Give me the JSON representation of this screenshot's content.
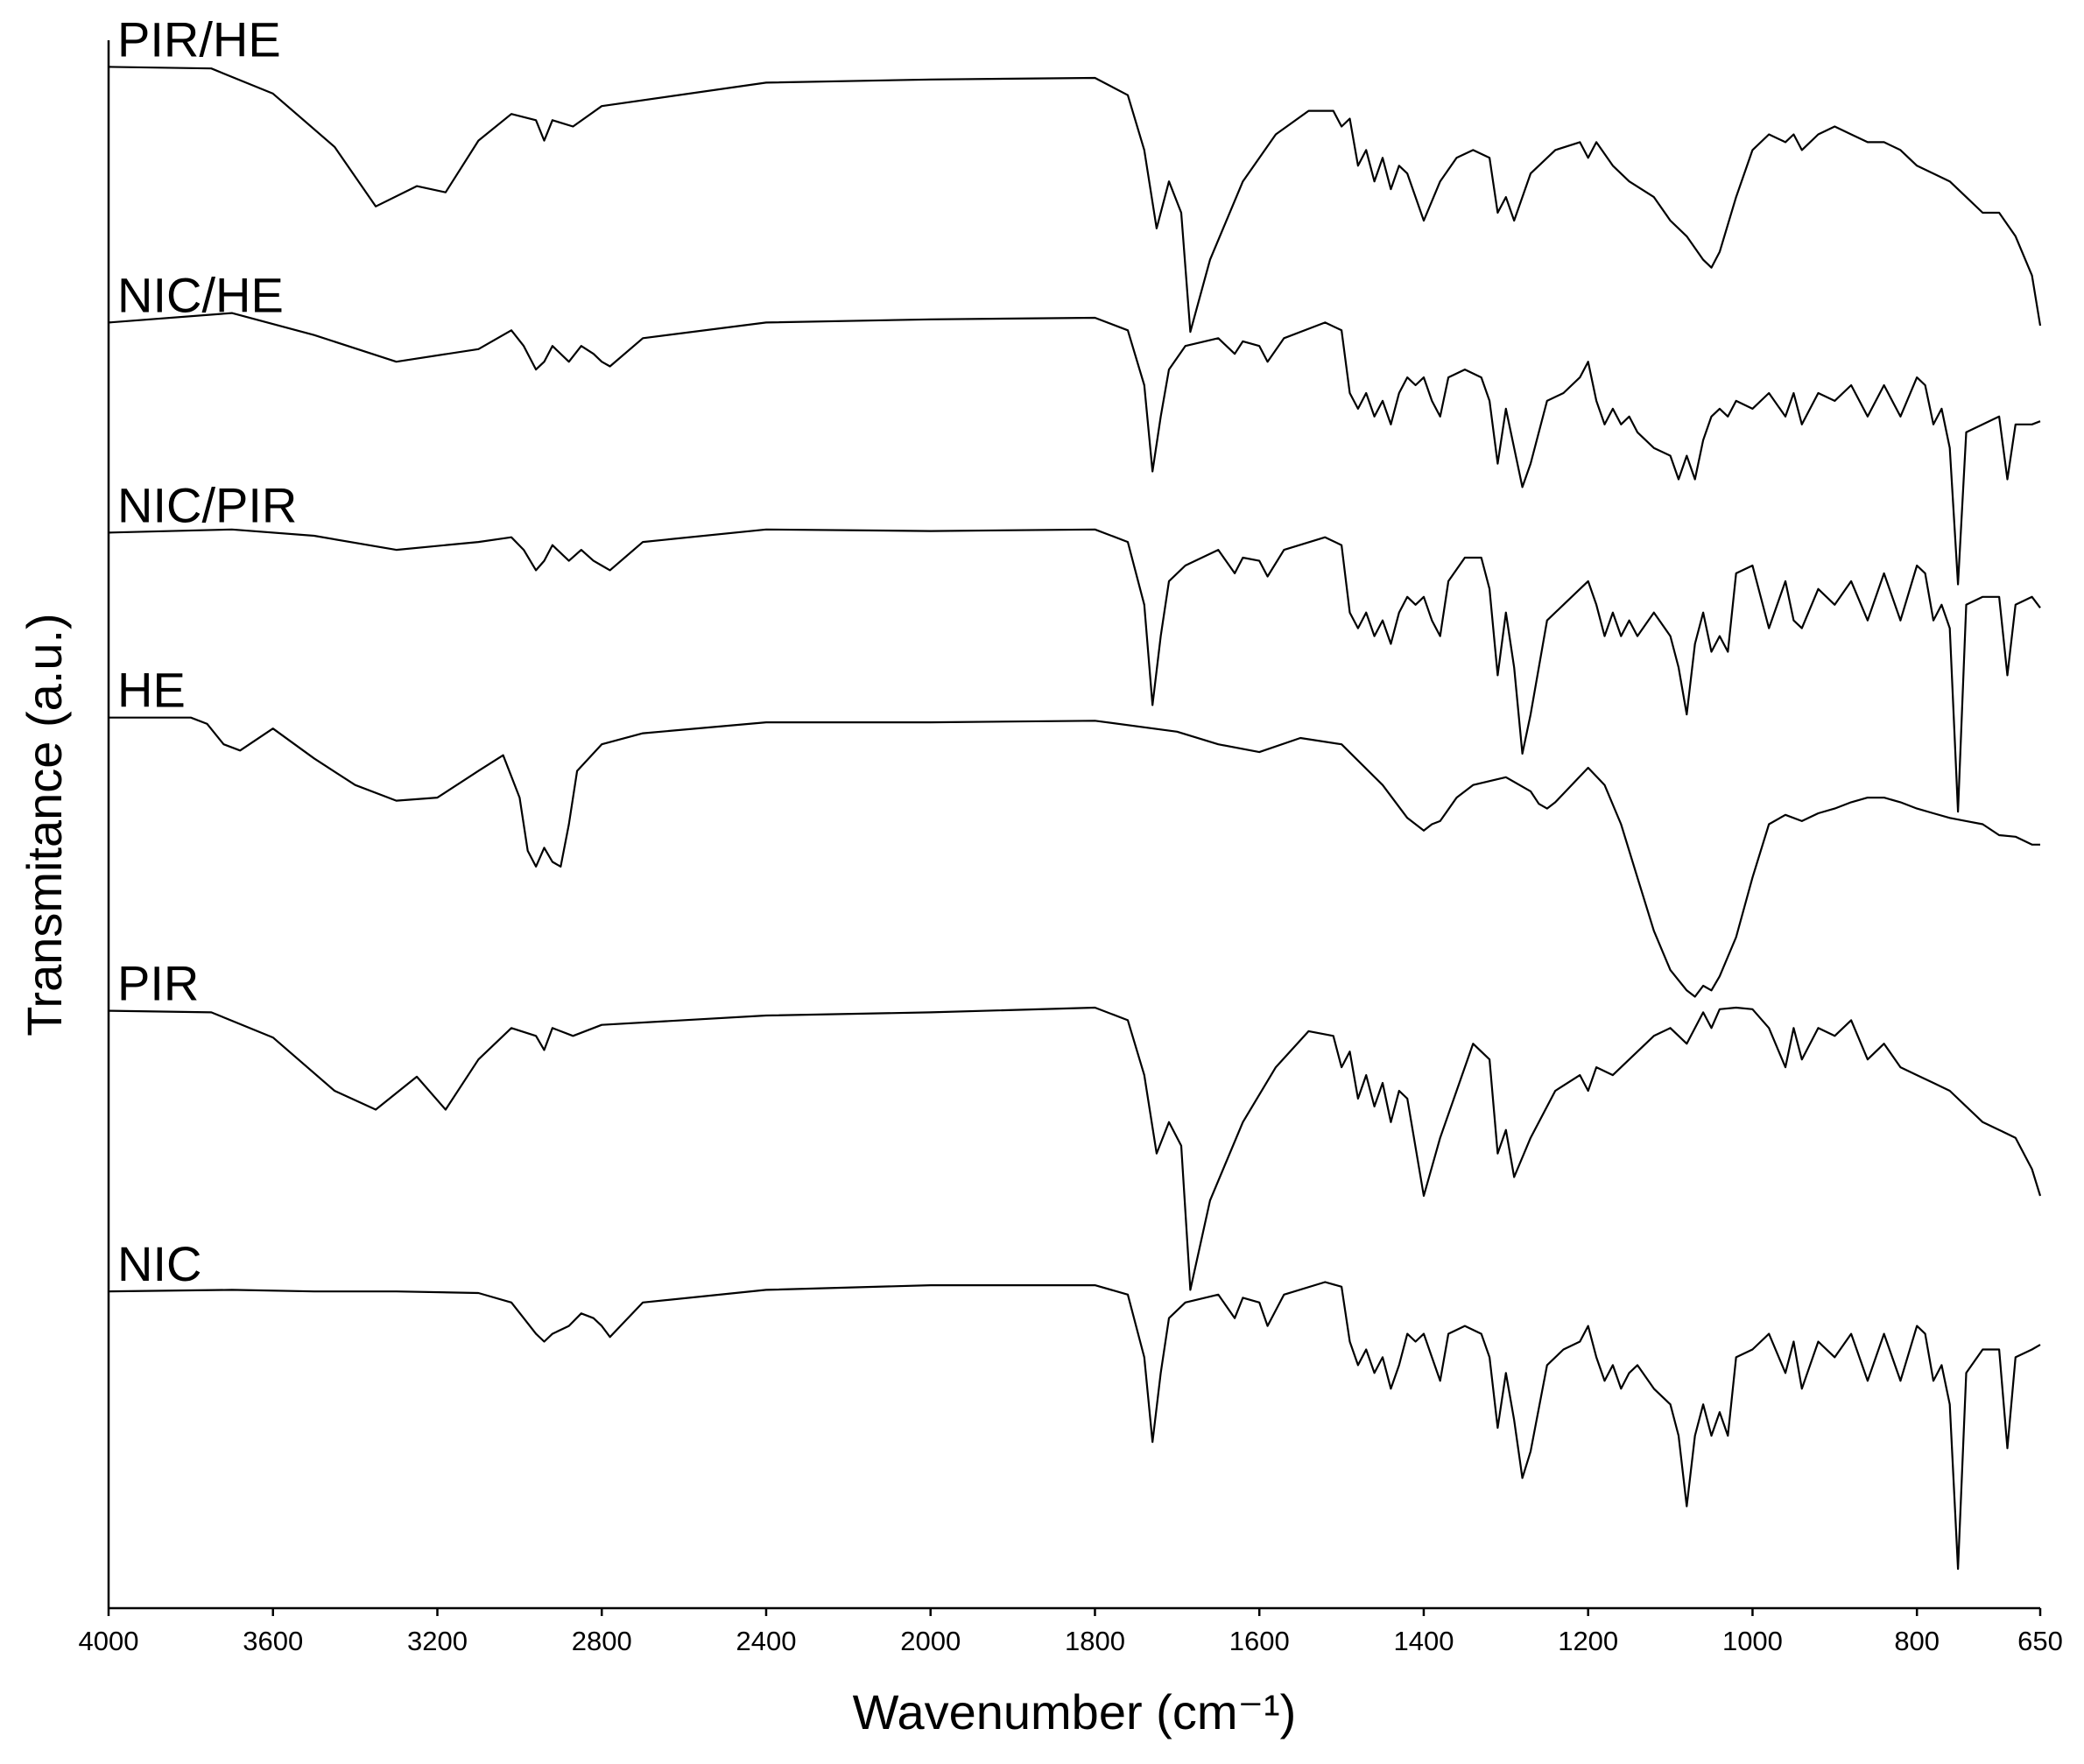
{
  "chart_data": {
    "type": "line",
    "xlabel": "Wavenumber (cm⁻¹)",
    "ylabel": "Transmitance (a.u.)",
    "xlim": [
      4000,
      650
    ],
    "ylim": [
      0,
      100
    ],
    "xticks": [
      4000,
      3600,
      3200,
      2800,
      2400,
      2000,
      1800,
      1600,
      1400,
      1200,
      1000,
      800,
      650
    ],
    "x_expand_below": 2000,
    "x_expand_factor": 2,
    "grid": false,
    "series": [
      {
        "name": "PIR/HE",
        "color": "#000000",
        "x": [
          4000,
          3750,
          3600,
          3450,
          3350,
          3250,
          3180,
          3100,
          3020,
          2960,
          2940,
          2920,
          2870,
          2800,
          2400,
          2000,
          1800,
          1760,
          1740,
          1725,
          1710,
          1695,
          1684,
          1660,
          1620,
          1580,
          1540,
          1510,
          1500,
          1490,
          1480,
          1470,
          1460,
          1450,
          1440,
          1430,
          1420,
          1400,
          1380,
          1360,
          1340,
          1320,
          1310,
          1300,
          1290,
          1270,
          1240,
          1210,
          1200,
          1190,
          1170,
          1150,
          1120,
          1100,
          1080,
          1060,
          1050,
          1040,
          1020,
          1000,
          980,
          960,
          950,
          940,
          920,
          900,
          880,
          860,
          840,
          820,
          800,
          780,
          760,
          740,
          720,
          700,
          680,
          660,
          650
        ],
        "values": [
          98.3,
          98.2,
          96.6,
          93.2,
          89.4,
          90.7,
          90.3,
          93.6,
          95.3,
          94.9,
          93.6,
          94.9,
          94.5,
          95.8,
          97.3,
          97.5,
          97.6,
          96.5,
          93,
          88,
          91,
          89,
          81.4,
          86,
          91,
          94,
          95.5,
          95.5,
          94.5,
          95,
          92,
          93,
          91,
          92.5,
          90.5,
          92,
          91.5,
          88.5,
          91,
          92.5,
          93,
          92.5,
          89,
          90,
          88.5,
          91.5,
          93,
          93.5,
          92.5,
          93.5,
          92,
          91,
          90,
          88.5,
          87.5,
          86,
          85.5,
          86.5,
          90,
          93,
          94,
          93.5,
          94,
          93,
          94,
          94.5,
          94,
          93.5,
          93.5,
          93,
          92,
          91.5,
          91,
          90,
          89,
          89,
          87.5,
          85,
          81.8
        ]
      },
      {
        "name": "NIC/HE",
        "color": "#000000",
        "x": [
          4000,
          3700,
          3500,
          3300,
          3100,
          3020,
          2990,
          2960,
          2940,
          2920,
          2880,
          2850,
          2820,
          2800,
          2780,
          2700,
          2400,
          2000,
          1800,
          1760,
          1740,
          1730,
          1720,
          1710,
          1690,
          1650,
          1630,
          1620,
          1600,
          1590,
          1570,
          1520,
          1500,
          1490,
          1480,
          1470,
          1460,
          1450,
          1440,
          1430,
          1420,
          1410,
          1400,
          1390,
          1380,
          1370,
          1350,
          1330,
          1320,
          1310,
          1300,
          1290,
          1280,
          1270,
          1250,
          1230,
          1210,
          1200,
          1190,
          1180,
          1170,
          1160,
          1150,
          1140,
          1120,
          1100,
          1090,
          1080,
          1070,
          1060,
          1050,
          1040,
          1030,
          1020,
          1000,
          980,
          960,
          950,
          940,
          920,
          900,
          880,
          860,
          840,
          820,
          800,
          790,
          780,
          770,
          760,
          750,
          740,
          720,
          700,
          690,
          680,
          660,
          650
        ],
        "values": [
          82,
          82.6,
          81.2,
          79.5,
          80.3,
          81.5,
          80.5,
          79,
          79.5,
          80.5,
          79.5,
          80.5,
          80,
          79.5,
          79.2,
          81,
          82,
          82.2,
          82.3,
          81.5,
          78,
          72.5,
          76,
          79,
          80.5,
          81,
          80,
          80.8,
          80.5,
          79.5,
          81,
          82,
          81.5,
          77.5,
          76.5,
          77.5,
          76,
          77,
          75.5,
          77.5,
          78.5,
          78,
          78.5,
          77,
          76,
          78.5,
          79,
          78.5,
          77,
          73,
          76.5,
          74,
          71.5,
          73,
          77,
          77.5,
          78.5,
          79.5,
          77,
          75.5,
          76.5,
          75.5,
          76,
          75,
          74,
          73.5,
          72,
          73.5,
          72,
          74.5,
          76,
          76.5,
          76,
          77,
          76.5,
          77.5,
          76,
          77.5,
          75.5,
          77.5,
          77,
          78,
          76,
          78,
          76,
          78.5,
          78,
          75.5,
          76.5,
          74,
          65.3,
          75,
          75.5,
          76,
          72,
          75.5,
          75.5,
          75.7
        ]
      },
      {
        "name": "NIC/PIR",
        "color": "#000000",
        "x": [
          4000,
          3700,
          3500,
          3300,
          3100,
          3020,
          2990,
          2960,
          2940,
          2920,
          2880,
          2850,
          2820,
          2800,
          2780,
          2700,
          2400,
          2000,
          1800,
          1760,
          1740,
          1730,
          1720,
          1710,
          1690,
          1650,
          1630,
          1620,
          1600,
          1590,
          1570,
          1520,
          1500,
          1490,
          1480,
          1470,
          1460,
          1450,
          1440,
          1430,
          1420,
          1410,
          1400,
          1390,
          1380,
          1370,
          1350,
          1330,
          1320,
          1310,
          1300,
          1290,
          1280,
          1270,
          1250,
          1230,
          1210,
          1200,
          1190,
          1180,
          1170,
          1160,
          1150,
          1140,
          1120,
          1100,
          1090,
          1080,
          1070,
          1060,
          1050,
          1040,
          1030,
          1020,
          1000,
          980,
          960,
          950,
          940,
          920,
          900,
          880,
          860,
          840,
          820,
          800,
          790,
          780,
          770,
          760,
          750,
          740,
          720,
          700,
          690,
          680,
          660,
          650
        ],
        "values": [
          68.6,
          68.8,
          68.4,
          67.5,
          68,
          68.3,
          67.5,
          66.2,
          66.8,
          67.8,
          66.8,
          67.5,
          66.8,
          66.5,
          66.2,
          68,
          68.8,
          68.7,
          68.8,
          68,
          64,
          57.6,
          62,
          65.5,
          66.5,
          67.5,
          66,
          67,
          66.8,
          65.8,
          67.5,
          68.3,
          67.8,
          63.5,
          62.5,
          63.5,
          62,
          63,
          61.5,
          63.5,
          64.5,
          64,
          64.5,
          63,
          62,
          65.5,
          67,
          67,
          65,
          59.5,
          63.5,
          60,
          54.5,
          57,
          63,
          64,
          65,
          65.5,
          64,
          62,
          63.5,
          62,
          63,
          62,
          63.5,
          62,
          60,
          57,
          61.5,
          63.5,
          61,
          62,
          61,
          66,
          66.5,
          62.5,
          65.5,
          63,
          62.5,
          65,
          64,
          65.5,
          63,
          66,
          63,
          66.5,
          66,
          63,
          64,
          62.5,
          50.8,
          64,
          64.5,
          64.5,
          59.5,
          64,
          64.5,
          63.8
        ]
      },
      {
        "name": "HE",
        "color": "#000000",
        "x": [
          4000,
          3800,
          3760,
          3720,
          3680,
          3600,
          3500,
          3400,
          3300,
          3200,
          3100,
          3040,
          3000,
          2980,
          2960,
          2940,
          2920,
          2900,
          2880,
          2860,
          2800,
          2700,
          2400,
          2000,
          1800,
          1700,
          1650,
          1600,
          1550,
          1500,
          1450,
          1420,
          1400,
          1390,
          1380,
          1360,
          1340,
          1300,
          1270,
          1260,
          1250,
          1240,
          1220,
          1200,
          1180,
          1160,
          1140,
          1120,
          1100,
          1080,
          1070,
          1060,
          1050,
          1040,
          1020,
          1000,
          980,
          960,
          940,
          920,
          900,
          880,
          860,
          840,
          820,
          800,
          780,
          760,
          740,
          720,
          700,
          680,
          660,
          650
        ],
        "values": [
          56.8,
          56.8,
          56.4,
          55.1,
          54.7,
          56.1,
          54.2,
          52.5,
          51.5,
          51.7,
          53.4,
          54.4,
          51.7,
          48.3,
          47.3,
          48.5,
          47.6,
          47.3,
          50,
          53.4,
          55.1,
          55.8,
          56.5,
          56.5,
          56.6,
          55.9,
          55.1,
          54.6,
          55.5,
          55.1,
          52.5,
          50.4,
          49.6,
          50,
          50.2,
          51.7,
          52.5,
          53,
          52.1,
          51.3,
          51,
          51.4,
          52.5,
          53.6,
          52.5,
          50,
          46.6,
          43.2,
          40.7,
          39.4,
          39,
          39.7,
          39.4,
          40.3,
          42.8,
          46.6,
          50,
          50.6,
          50.2,
          50.7,
          51,
          51.4,
          51.7,
          51.7,
          51.4,
          51,
          50.7,
          50.4,
          50.2,
          50,
          49.3,
          49.2,
          48.7,
          48.7
        ]
      },
      {
        "name": "PIR",
        "color": "#000000",
        "x": [
          4000,
          3750,
          3600,
          3450,
          3350,
          3250,
          3180,
          3100,
          3020,
          2960,
          2940,
          2920,
          2870,
          2800,
          2400,
          2000,
          1800,
          1760,
          1740,
          1725,
          1710,
          1695,
          1684,
          1660,
          1620,
          1580,
          1540,
          1510,
          1500,
          1490,
          1480,
          1470,
          1460,
          1450,
          1440,
          1430,
          1420,
          1400,
          1380,
          1360,
          1340,
          1320,
          1310,
          1300,
          1290,
          1270,
          1240,
          1210,
          1200,
          1190,
          1170,
          1150,
          1120,
          1100,
          1080,
          1060,
          1050,
          1040,
          1020,
          1000,
          980,
          960,
          950,
          940,
          920,
          900,
          880,
          860,
          840,
          820,
          800,
          780,
          760,
          740,
          720,
          700,
          680,
          660,
          650
        ],
        "values": [
          38.1,
          38,
          36.4,
          33,
          31.8,
          33.9,
          31.8,
          35,
          37,
          36.5,
          35.6,
          37,
          36.5,
          37.2,
          37.8,
          38,
          38.3,
          37.5,
          34,
          29,
          31,
          29.5,
          20.3,
          26,
          31,
          34.5,
          36.8,
          36.5,
          34.5,
          35.5,
          32.5,
          34,
          32,
          33.5,
          31,
          33,
          32.5,
          26.3,
          30,
          33,
          36,
          35,
          29,
          30.5,
          27.5,
          30,
          33,
          34,
          33,
          34.5,
          34,
          35,
          36.5,
          37,
          36,
          38,
          37,
          38.2,
          38.3,
          38.2,
          37,
          34.5,
          37,
          35,
          37,
          36.5,
          37.5,
          35,
          36,
          34.5,
          34,
          33.5,
          33,
          32,
          31,
          30.5,
          30,
          28,
          26.3
        ]
      },
      {
        "name": "NIC",
        "color": "#000000",
        "x": [
          4000,
          3700,
          3500,
          3300,
          3100,
          3020,
          2990,
          2960,
          2940,
          2920,
          2880,
          2850,
          2820,
          2800,
          2780,
          2700,
          2400,
          2000,
          1800,
          1760,
          1740,
          1730,
          1720,
          1710,
          1690,
          1650,
          1630,
          1620,
          1600,
          1590,
          1570,
          1520,
          1500,
          1490,
          1480,
          1470,
          1460,
          1450,
          1440,
          1430,
          1420,
          1410,
          1400,
          1390,
          1380,
          1370,
          1350,
          1330,
          1320,
          1310,
          1300,
          1290,
          1280,
          1270,
          1250,
          1230,
          1210,
          1200,
          1190,
          1180,
          1170,
          1160,
          1150,
          1140,
          1120,
          1100,
          1090,
          1080,
          1070,
          1060,
          1050,
          1040,
          1030,
          1020,
          1000,
          980,
          960,
          950,
          940,
          920,
          900,
          880,
          860,
          840,
          820,
          800,
          790,
          780,
          770,
          760,
          750,
          740,
          720,
          700,
          690,
          680,
          660,
          650
        ],
        "values": [
          20.2,
          20.3,
          20.2,
          20.2,
          20.1,
          19.5,
          18.5,
          17.5,
          17,
          17.5,
          18,
          18.8,
          18.5,
          18,
          17.3,
          19.5,
          20.3,
          20.6,
          20.6,
          20,
          16,
          10.6,
          15,
          18.5,
          19.5,
          20,
          18.5,
          19.8,
          19.5,
          18,
          20,
          20.8,
          20.5,
          17,
          15.5,
          16.5,
          15,
          16,
          14,
          15.5,
          17.5,
          17,
          17.5,
          16,
          14.5,
          17.5,
          18,
          17.5,
          16,
          11.5,
          15,
          12,
          8.3,
          10,
          15.5,
          16.5,
          17,
          18,
          16,
          14.5,
          15.5,
          14,
          15,
          15.5,
          14,
          13,
          11,
          6.5,
          11,
          13,
          11,
          12.5,
          11,
          16,
          16.5,
          17.5,
          15,
          17,
          14,
          17,
          16,
          17.5,
          14.5,
          17.5,
          14.5,
          18,
          17.5,
          14.5,
          15.5,
          13,
          2.5,
          15,
          16.5,
          16.5,
          10.2,
          16,
          16.5,
          16.8
        ]
      }
    ]
  }
}
